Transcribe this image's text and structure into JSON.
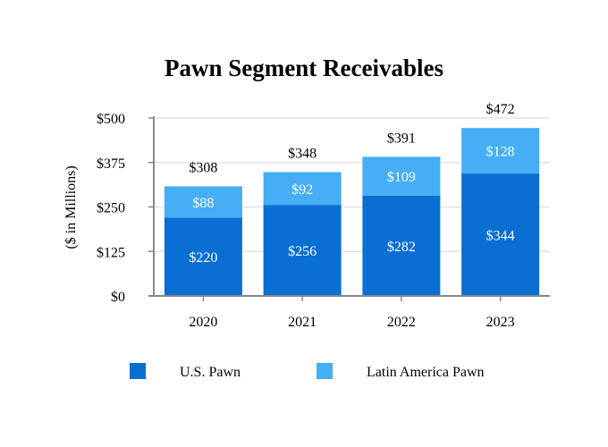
{
  "chart_data": {
    "type": "bar",
    "stacked": true,
    "title": "Pawn Segment Receivables",
    "xlabel": "",
    "ylabel": "($ in Millions)",
    "categories": [
      "2020",
      "2021",
      "2022",
      "2023"
    ],
    "series": [
      {
        "name": "U.S. Pawn",
        "values": [
          220,
          256,
          282,
          344
        ],
        "labels": [
          "$220",
          "$256",
          "$282",
          "$344"
        ],
        "color": "#0a6fd3"
      },
      {
        "name": "Latin America Pawn",
        "values": [
          88,
          92,
          109,
          128
        ],
        "labels": [
          "$88",
          "$92",
          "$109",
          "$128"
        ],
        "color": "#45aef5"
      }
    ],
    "totals": [
      308,
      348,
      391,
      472
    ],
    "total_labels": [
      "$308",
      "$348",
      "$391",
      "$472"
    ],
    "ylim": [
      0,
      500
    ],
    "yticks": [
      0,
      125,
      250,
      375,
      500
    ],
    "ytick_labels": [
      "$0",
      "$125",
      "$250",
      "$375",
      "$500"
    ],
    "grid": true,
    "legend_position": "bottom"
  }
}
